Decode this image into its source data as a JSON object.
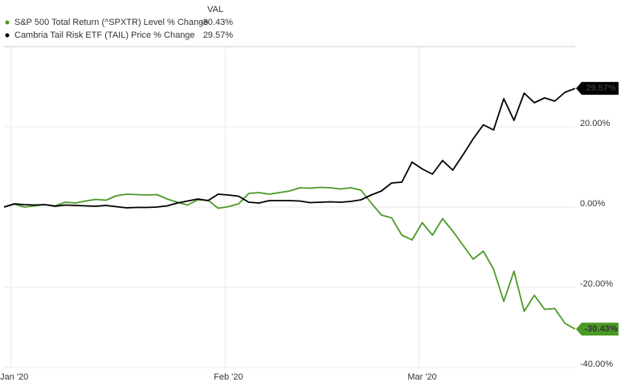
{
  "chart_data": {
    "type": "line",
    "legend_header": "VAL",
    "categories": [
      null,
      "Jan '20",
      null,
      null,
      null,
      null,
      null,
      null,
      null,
      null,
      null,
      null,
      null,
      null,
      null,
      null,
      null,
      null,
      null,
      null,
      null,
      null,
      "Feb '20",
      null,
      null,
      null,
      null,
      null,
      null,
      null,
      null,
      null,
      null,
      null,
      null,
      null,
      null,
      null,
      null,
      null,
      null,
      "Mar '20",
      null,
      null,
      null,
      null,
      null,
      null,
      null,
      null,
      null,
      null,
      null,
      null,
      null,
      null,
      null
    ],
    "series": [
      {
        "name": "S&P 500 Total Return (^SPXTR) Level % Change",
        "color": "#4a9a26",
        "legend_value": "-30.43%",
        "values": [
          0,
          0.7,
          0,
          0.3,
          0.6,
          0.3,
          1.2,
          1.0,
          1.5,
          1.9,
          1.7,
          2.8,
          3.2,
          3.1,
          3.0,
          3.1,
          2.0,
          1.2,
          0.5,
          1.8,
          1.7,
          -0.3,
          0.1,
          0.8,
          3.4,
          3.6,
          3.2,
          3.6,
          4.0,
          4.8,
          4.7,
          4.9,
          4.8,
          4.5,
          4.8,
          4.2,
          1.0,
          -2.0,
          -2.7,
          -7.0,
          -8.2,
          -3.9,
          -7.0,
          -2.9,
          -6.0,
          -9.5,
          -13,
          -11,
          -15.5,
          -23.5,
          -16.0,
          -26,
          -22.0,
          -25.5,
          -25.3,
          -29,
          -30.43
        ]
      },
      {
        "name": "Cambria Tail Risk ETF (TAIL) Price % Change",
        "color": "#000000",
        "legend_value": "29.57%",
        "values": [
          0,
          0.8,
          0.6,
          0.5,
          0.6,
          0.2,
          0.5,
          0.4,
          0.3,
          0.2,
          0.4,
          0.1,
          -0.2,
          -0.1,
          -0.1,
          0.0,
          0.3,
          1.0,
          1.5,
          2.0,
          1.6,
          3.2,
          3.0,
          2.7,
          1.2,
          1.0,
          1.6,
          1.6,
          1.6,
          1.5,
          1.1,
          1.2,
          1.3,
          1.2,
          1.4,
          1.8,
          3.0,
          4.0,
          6.0,
          6.2,
          11.2,
          9.5,
          8.2,
          11.6,
          9.2,
          13,
          17,
          20.5,
          19.2,
          27,
          21.6,
          28.4,
          26,
          27.2,
          26.4,
          28.6,
          29.57
        ]
      }
    ],
    "ylim": [
      -40,
      40
    ],
    "yticks": [
      {
        "value": -40,
        "label": "-40.00%"
      },
      {
        "value": -20,
        "label": "-20.00%"
      },
      {
        "value": 0,
        "label": "0.00%"
      },
      {
        "value": 20,
        "label": "20.00%"
      }
    ],
    "grid": true
  }
}
